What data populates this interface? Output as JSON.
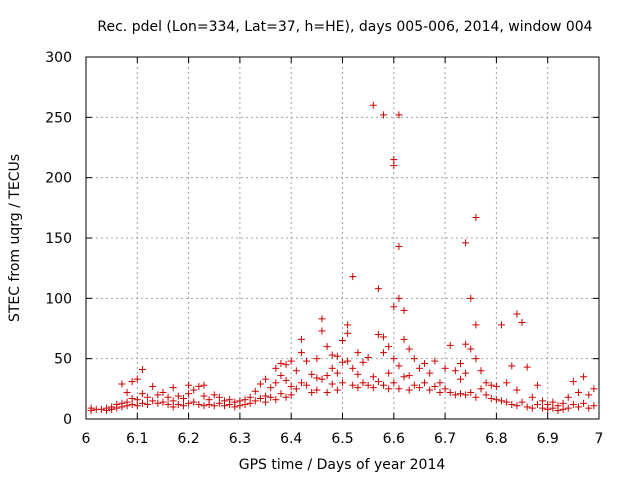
{
  "chart_data": {
    "type": "scatter",
    "title": "Rec. pdel (Lon=334, Lat=37, h=HE), days 005-006, 2014, window 004",
    "xlabel": "GPS time / Days of year 2014",
    "ylabel": "STEC from uqrg / TECUs",
    "xlim": [
      6.0,
      7.0
    ],
    "ylim": [
      0,
      300
    ],
    "xticks": [
      6.0,
      6.1,
      6.2,
      6.3,
      6.4,
      6.5,
      6.6,
      6.7,
      6.8,
      6.9,
      7.0
    ],
    "xtick_labels": [
      "6",
      "6.1",
      "6.2",
      "6.3",
      "6.4",
      "6.5",
      "6.6",
      "6.7",
      "6.8",
      "6.9",
      "7"
    ],
    "yticks": [
      0,
      50,
      100,
      150,
      200,
      250,
      300
    ],
    "ytick_labels": [
      "0",
      "50",
      "100",
      "150",
      "200",
      "250",
      "300"
    ],
    "grid": true,
    "marker": "+",
    "color": "#cc0000",
    "series": [
      {
        "name": "STEC",
        "points": [
          [
            6.01,
            9
          ],
          [
            6.01,
            7
          ],
          [
            6.02,
            8
          ],
          [
            6.03,
            8
          ],
          [
            6.04,
            9
          ],
          [
            6.04,
            7
          ],
          [
            6.05,
            10
          ],
          [
            6.05,
            8
          ],
          [
            6.06,
            12
          ],
          [
            6.06,
            9
          ],
          [
            6.07,
            29
          ],
          [
            6.07,
            13
          ],
          [
            6.07,
            10
          ],
          [
            6.08,
            11
          ],
          [
            6.08,
            14
          ],
          [
            6.08,
            22
          ],
          [
            6.09,
            31
          ],
          [
            6.09,
            17
          ],
          [
            6.09,
            12
          ],
          [
            6.1,
            33
          ],
          [
            6.1,
            16
          ],
          [
            6.1,
            11
          ],
          [
            6.11,
            41
          ],
          [
            6.11,
            21
          ],
          [
            6.11,
            13
          ],
          [
            6.12,
            18
          ],
          [
            6.12,
            12
          ],
          [
            6.13,
            27
          ],
          [
            6.13,
            15
          ],
          [
            6.14,
            20
          ],
          [
            6.14,
            13
          ],
          [
            6.15,
            22
          ],
          [
            6.15,
            14
          ],
          [
            6.16,
            18
          ],
          [
            6.16,
            12
          ],
          [
            6.17,
            26
          ],
          [
            6.17,
            15
          ],
          [
            6.17,
            10
          ],
          [
            6.18,
            19
          ],
          [
            6.18,
            12
          ],
          [
            6.19,
            17
          ],
          [
            6.19,
            11
          ],
          [
            6.2,
            28
          ],
          [
            6.2,
            21
          ],
          [
            6.2,
            13
          ],
          [
            6.21,
            24
          ],
          [
            6.21,
            14
          ],
          [
            6.22,
            27
          ],
          [
            6.22,
            12
          ],
          [
            6.23,
            28
          ],
          [
            6.23,
            19
          ],
          [
            6.23,
            11
          ],
          [
            6.24,
            16
          ],
          [
            6.24,
            12
          ],
          [
            6.25,
            20
          ],
          [
            6.25,
            11
          ],
          [
            6.26,
            18
          ],
          [
            6.26,
            13
          ],
          [
            6.27,
            15
          ],
          [
            6.27,
            11
          ],
          [
            6.28,
            16
          ],
          [
            6.28,
            12
          ],
          [
            6.29,
            14
          ],
          [
            6.29,
            10
          ],
          [
            6.3,
            15
          ],
          [
            6.3,
            11
          ],
          [
            6.31,
            16
          ],
          [
            6.31,
            12
          ],
          [
            6.32,
            18
          ],
          [
            6.32,
            13
          ],
          [
            6.33,
            23
          ],
          [
            6.33,
            15
          ],
          [
            6.34,
            29
          ],
          [
            6.34,
            17
          ],
          [
            6.35,
            33
          ],
          [
            6.35,
            19
          ],
          [
            6.35,
            14
          ],
          [
            6.36,
            26
          ],
          [
            6.36,
            18
          ],
          [
            6.37,
            42
          ],
          [
            6.37,
            30
          ],
          [
            6.37,
            16
          ],
          [
            6.38,
            46
          ],
          [
            6.38,
            36
          ],
          [
            6.38,
            21
          ],
          [
            6.39,
            45
          ],
          [
            6.39,
            32
          ],
          [
            6.39,
            18
          ],
          [
            6.4,
            48
          ],
          [
            6.4,
            27
          ],
          [
            6.4,
            20
          ],
          [
            6.41,
            40
          ],
          [
            6.41,
            25
          ],
          [
            6.42,
            66
          ],
          [
            6.42,
            55
          ],
          [
            6.42,
            30
          ],
          [
            6.43,
            48
          ],
          [
            6.43,
            28
          ],
          [
            6.44,
            37
          ],
          [
            6.44,
            22
          ],
          [
            6.45,
            50
          ],
          [
            6.45,
            34
          ],
          [
            6.45,
            24
          ],
          [
            6.46,
            83
          ],
          [
            6.46,
            73
          ],
          [
            6.46,
            33
          ],
          [
            6.47,
            60
          ],
          [
            6.47,
            36
          ],
          [
            6.47,
            22
          ],
          [
            6.48,
            53
          ],
          [
            6.48,
            42
          ],
          [
            6.48,
            29
          ],
          [
            6.49,
            52
          ],
          [
            6.49,
            38
          ],
          [
            6.49,
            24
          ],
          [
            6.5,
            65
          ],
          [
            6.5,
            47
          ],
          [
            6.5,
            30
          ],
          [
            6.51,
            78
          ],
          [
            6.51,
            71
          ],
          [
            6.51,
            48
          ],
          [
            6.52,
            118
          ],
          [
            6.52,
            42
          ],
          [
            6.52,
            28
          ],
          [
            6.53,
            55
          ],
          [
            6.53,
            37
          ],
          [
            6.53,
            26
          ],
          [
            6.54,
            47
          ],
          [
            6.54,
            30
          ],
          [
            6.55,
            51
          ],
          [
            6.55,
            28
          ],
          [
            6.56,
            260
          ],
          [
            6.56,
            35
          ],
          [
            6.56,
            26
          ],
          [
            6.57,
            108
          ],
          [
            6.57,
            70
          ],
          [
            6.57,
            31
          ],
          [
            6.58,
            252
          ],
          [
            6.58,
            68
          ],
          [
            6.58,
            55
          ],
          [
            6.58,
            28
          ],
          [
            6.59,
            60
          ],
          [
            6.59,
            38
          ],
          [
            6.59,
            25
          ],
          [
            6.6,
            215
          ],
          [
            6.6,
            210
          ],
          [
            6.6,
            93
          ],
          [
            6.6,
            50
          ],
          [
            6.6,
            30
          ],
          [
            6.61,
            252
          ],
          [
            6.61,
            143
          ],
          [
            6.61,
            100
          ],
          [
            6.61,
            44
          ],
          [
            6.61,
            25
          ],
          [
            6.62,
            90
          ],
          [
            6.62,
            66
          ],
          [
            6.62,
            35
          ],
          [
            6.63,
            58
          ],
          [
            6.63,
            36
          ],
          [
            6.63,
            24
          ],
          [
            6.64,
            50
          ],
          [
            6.64,
            28
          ],
          [
            6.65,
            42
          ],
          [
            6.65,
            26
          ],
          [
            6.66,
            46
          ],
          [
            6.66,
            30
          ],
          [
            6.67,
            38
          ],
          [
            6.67,
            24
          ],
          [
            6.68,
            48
          ],
          [
            6.68,
            27
          ],
          [
            6.69,
            30
          ],
          [
            6.69,
            22
          ],
          [
            6.7,
            42
          ],
          [
            6.7,
            25
          ],
          [
            6.71,
            61
          ],
          [
            6.71,
            22
          ],
          [
            6.72,
            40
          ],
          [
            6.72,
            20
          ],
          [
            6.73,
            46
          ],
          [
            6.73,
            33
          ],
          [
            6.73,
            21
          ],
          [
            6.74,
            146
          ],
          [
            6.74,
            62
          ],
          [
            6.74,
            38
          ],
          [
            6.74,
            20
          ],
          [
            6.75,
            100
          ],
          [
            6.75,
            58
          ],
          [
            6.75,
            22
          ],
          [
            6.76,
            167
          ],
          [
            6.76,
            78
          ],
          [
            6.76,
            50
          ],
          [
            6.76,
            18
          ],
          [
            6.77,
            40
          ],
          [
            6.77,
            25
          ],
          [
            6.78,
            30
          ],
          [
            6.78,
            20
          ],
          [
            6.79,
            28
          ],
          [
            6.79,
            17
          ],
          [
            6.8,
            27
          ],
          [
            6.8,
            16
          ],
          [
            6.81,
            78
          ],
          [
            6.81,
            15
          ],
          [
            6.82,
            30
          ],
          [
            6.82,
            14
          ],
          [
            6.83,
            44
          ],
          [
            6.83,
            12
          ],
          [
            6.84,
            87
          ],
          [
            6.84,
            24
          ],
          [
            6.84,
            11
          ],
          [
            6.85,
            80
          ],
          [
            6.85,
            14
          ],
          [
            6.86,
            43
          ],
          [
            6.86,
            10
          ],
          [
            6.87,
            18
          ],
          [
            6.87,
            9
          ],
          [
            6.88,
            28
          ],
          [
            6.88,
            12
          ],
          [
            6.89,
            15
          ],
          [
            6.89,
            9
          ],
          [
            6.9,
            12
          ],
          [
            6.9,
            8
          ],
          [
            6.91,
            14
          ],
          [
            6.91,
            9
          ],
          [
            6.92,
            11
          ],
          [
            6.92,
            7
          ],
          [
            6.93,
            13
          ],
          [
            6.93,
            8
          ],
          [
            6.94,
            18
          ],
          [
            6.94,
            9
          ],
          [
            6.95,
            31
          ],
          [
            6.95,
            12
          ],
          [
            6.96,
            22
          ],
          [
            6.96,
            10
          ],
          [
            6.97,
            35
          ],
          [
            6.97,
            13
          ],
          [
            6.98,
            20
          ],
          [
            6.98,
            9
          ],
          [
            6.99,
            25
          ],
          [
            6.99,
            11
          ]
        ]
      }
    ]
  }
}
